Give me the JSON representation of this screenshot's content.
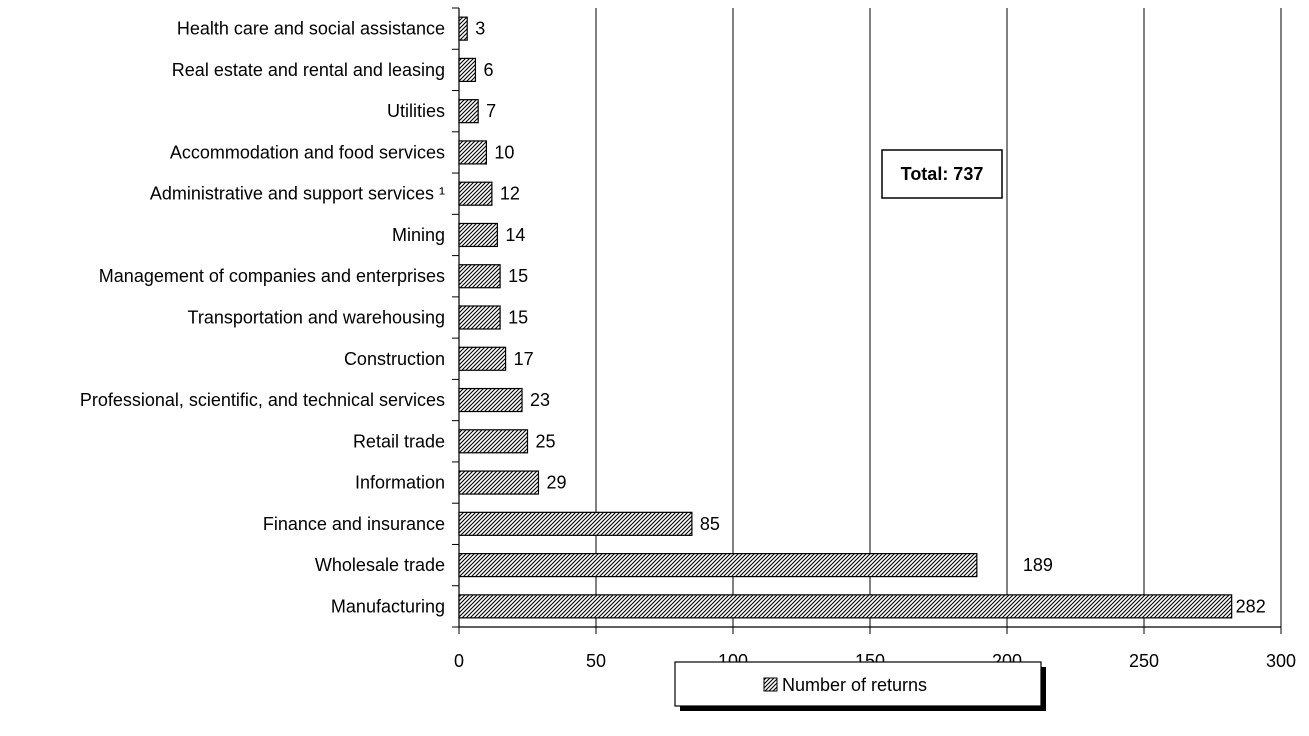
{
  "chart_data": {
    "type": "bar",
    "orientation": "horizontal",
    "categories": [
      "Health care and social assistance",
      "Real estate and rental and leasing",
      "Utilities",
      "Accommodation and food services",
      "Administrative and support services ¹",
      "Mining",
      "Management of companies and enterprises",
      "Transportation and warehousing",
      "Construction",
      "Professional, scientific, and technical services",
      "Retail trade",
      "Information",
      "Finance and insurance",
      "Wholesale trade",
      "Manufacturing"
    ],
    "series": [
      {
        "name": "Number of returns",
        "values": [
          3,
          6,
          7,
          10,
          12,
          14,
          15,
          15,
          17,
          23,
          25,
          29,
          85,
          189,
          282
        ],
        "labels": [
          "3",
          "6",
          "7",
          "10",
          "12",
          "14",
          "15",
          "15",
          "17",
          "23",
          "25",
          "29",
          "85",
          "189",
          "282"
        ]
      }
    ],
    "title": "",
    "xlabel": "",
    "ylabel": "",
    "xlim": [
      0,
      300
    ],
    "xticks": [
      0,
      50,
      100,
      150,
      200,
      250,
      300
    ],
    "xtick_labels": [
      "0",
      "50",
      "100",
      "150",
      "200",
      "250",
      "300"
    ],
    "grid": "vertical",
    "legend_position": "bottom",
    "annotation": "Total:  737",
    "fill_pattern": "diagonal-hatch",
    "colors": {
      "bar_fill": "#ffffff",
      "hatch": "#000000",
      "grid": "#000000"
    }
  }
}
